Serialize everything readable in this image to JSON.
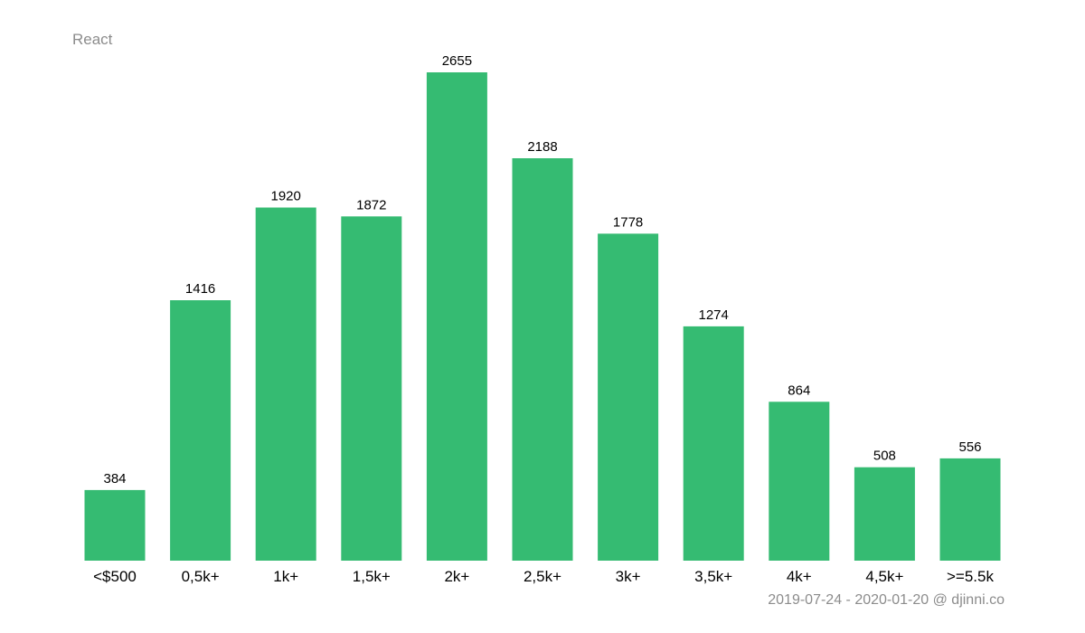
{
  "chart_data": {
    "type": "bar",
    "title": "React",
    "categories": [
      "<$500",
      "0,5k+",
      "1k+",
      "1,5k+",
      "2k+",
      "2,5k+",
      "3k+",
      "3,5k+",
      "4k+",
      "4,5k+",
      ">=5.5k"
    ],
    "values": [
      384,
      1416,
      1920,
      1872,
      2655,
      2188,
      1778,
      1274,
      864,
      508,
      556
    ],
    "xlabel": "",
    "ylabel": "",
    "ylim": [
      0,
      2655
    ],
    "grid": false,
    "legend": "none",
    "bar_color": "#35bb72",
    "footer": "2019-07-24 - 2020-01-20 @ djinni.co"
  }
}
